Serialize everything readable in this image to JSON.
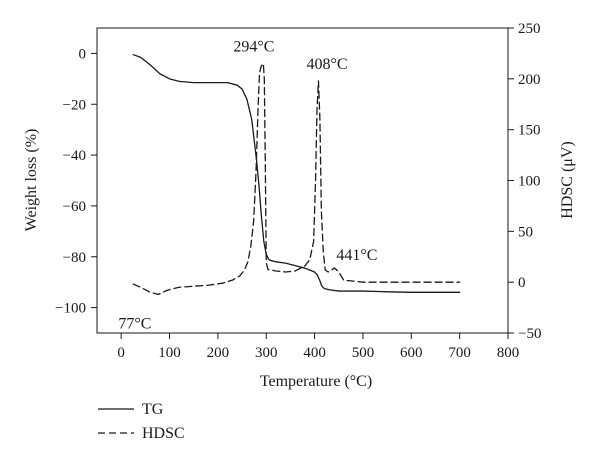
{
  "chart_data": {
    "type": "line",
    "title": "",
    "xlabel": "Temperature (°C)",
    "ylabel_left": "Weight loss (%)",
    "ylabel_right": "HDSC (μV)",
    "xlim": [
      -50,
      800
    ],
    "ylim_left": [
      -110,
      10
    ],
    "ylim_right": [
      -50,
      250
    ],
    "x_ticks": [
      0,
      100,
      200,
      300,
      400,
      500,
      600,
      700,
      800
    ],
    "y_left_ticks": [
      0,
      -20,
      -40,
      -60,
      -80,
      -100
    ],
    "y_right_ticks": [
      250,
      200,
      150,
      100,
      50,
      0,
      -50
    ],
    "grid": false,
    "legend_position": "bottom-left",
    "series": [
      {
        "name": "TG",
        "axis": "left",
        "dash": "solid",
        "x": [
          25,
          40,
          60,
          80,
          100,
          120,
          150,
          180,
          200,
          220,
          240,
          250,
          260,
          270,
          280,
          285,
          290,
          295,
          300,
          305,
          310,
          320,
          340,
          360,
          380,
          400,
          405,
          410,
          415,
          420,
          430,
          450,
          500,
          550,
          600,
          650,
          700
        ],
        "y": [
          -0.5,
          -1.5,
          -4.5,
          -8,
          -10,
          -11,
          -11.5,
          -11.5,
          -11.5,
          -11.5,
          -12.5,
          -14,
          -18,
          -26,
          -42,
          -52,
          -64,
          -74,
          -79,
          -81,
          -81.5,
          -82,
          -82.5,
          -83.5,
          -84.5,
          -86,
          -87,
          -89,
          -91.5,
          -92.5,
          -93,
          -93.5,
          -93.5,
          -93.8,
          -94,
          -94,
          -94
        ]
      },
      {
        "name": "HDSC",
        "axis": "right",
        "dash": "dashed",
        "x": [
          25,
          40,
          60,
          77,
          95,
          120,
          150,
          180,
          210,
          230,
          245,
          255,
          262,
          268,
          274,
          279,
          283,
          286,
          289,
          292,
          294,
          296,
          298,
          300,
          303,
          306,
          310,
          320,
          340,
          360,
          380,
          390,
          398,
          402,
          405,
          408,
          411,
          414,
          418,
          422,
          428,
          435,
          441,
          450,
          460,
          480,
          500,
          550,
          600,
          650,
          700
        ],
        "y": [
          -2,
          -5,
          -10,
          -12,
          -8,
          -5,
          -4,
          -3,
          -1,
          2,
          6,
          12,
          20,
          35,
          60,
          110,
          170,
          205,
          212,
          214,
          215,
          200,
          120,
          20,
          13,
          12,
          12,
          11,
          10,
          11,
          16,
          22,
          40,
          100,
          170,
          198,
          160,
          70,
          30,
          12,
          10,
          12,
          14,
          10,
          2,
          1,
          0,
          0,
          0,
          0,
          0
        ]
      }
    ],
    "annotations": [
      {
        "text": "294°C",
        "x": 294,
        "y_right": 215
      },
      {
        "text": "408°C",
        "x": 408,
        "y_right": 198
      },
      {
        "text": "441°C",
        "x": 441,
        "y_right": 14
      },
      {
        "text": "77°C",
        "x": 77,
        "y_right": -12
      }
    ]
  }
}
